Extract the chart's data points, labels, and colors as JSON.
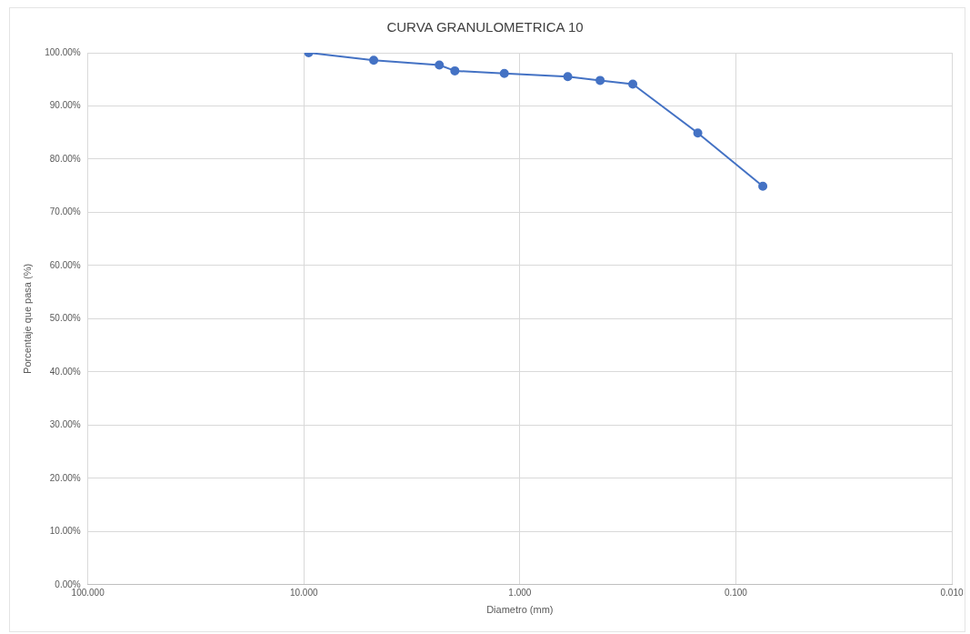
{
  "chart_data": {
    "type": "line",
    "title": "CURVA GRANULOMETRICA 10",
    "xlabel": "Diametro (mm)",
    "ylabel": "Porcentaje que pasa (%)",
    "log": "x",
    "xlim": [
      100,
      0.01
    ],
    "xticks": [
      {
        "value": 100,
        "label": "100.000"
      },
      {
        "value": 10,
        "label": "10.000"
      },
      {
        "value": 1,
        "label": "1.000"
      },
      {
        "value": 0.1,
        "label": "0.100"
      },
      {
        "value": 0.01,
        "label": "0.010"
      }
    ],
    "ylim": [
      0,
      100
    ],
    "yticks": [
      {
        "value": 0,
        "label": "0.00%"
      },
      {
        "value": 10,
        "label": "10.00%"
      },
      {
        "value": 20,
        "label": "20.00%"
      },
      {
        "value": 30,
        "label": "30.00%"
      },
      {
        "value": 40,
        "label": "40.00%"
      },
      {
        "value": 50,
        "label": "50.00%"
      },
      {
        "value": 60,
        "label": "60.00%"
      },
      {
        "value": 70,
        "label": "70.00%"
      },
      {
        "value": 80,
        "label": "80.00%"
      },
      {
        "value": 90,
        "label": "90.00%"
      },
      {
        "value": 100,
        "label": "100.00%"
      }
    ],
    "grid": true,
    "marker": "circle",
    "line_style": "solid",
    "x": [
      9.5,
      4.75,
      2.36,
      2.0,
      1.18,
      0.6,
      0.425,
      0.3,
      0.15,
      0.075
    ],
    "series": [
      {
        "color": "#4472c4",
        "values": [
          100,
          98.6,
          97.7,
          96.6,
          96.1,
          95.5,
          94.8,
          94.1,
          84.9,
          74.9
        ]
      }
    ]
  }
}
